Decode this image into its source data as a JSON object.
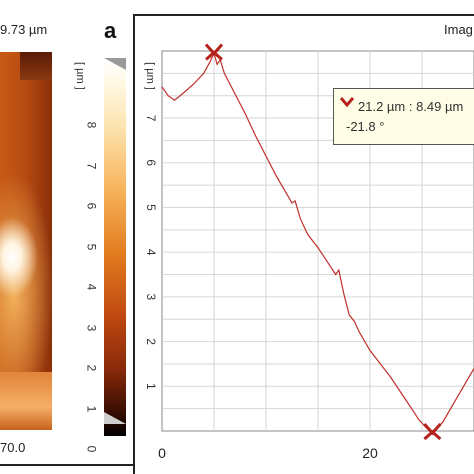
{
  "left_panel": {
    "header_value": "9.73 µm",
    "bottom_value": "70.0"
  },
  "colorbar": {
    "unit": "[ µm ]",
    "ticks": [
      "8",
      "7",
      "6",
      "5",
      "4",
      "3",
      "2",
      "1",
      "0"
    ]
  },
  "panel_label": "a",
  "image_tab": "Imag",
  "tooltip": {
    "line1": "21.2 µm : 8.49 µm",
    "line2": "-21.8 °"
  },
  "colors": {
    "line": "#c0302a",
    "marker": "#b5221c",
    "grid": "#d6d6d6",
    "tooltip_bg": "#fffde6"
  },
  "chart_data": {
    "type": "line",
    "ylabel": "[ µm ]",
    "xlim": [
      0,
      30
    ],
    "ylim": [
      0,
      8.5
    ],
    "x_ticks": [
      0,
      20
    ],
    "y_ticks": [
      1,
      2,
      3,
      4,
      5,
      6,
      7
    ],
    "grid": true,
    "series": [
      {
        "x": [
          0,
          0.6,
          1.2,
          2.0,
          3.0,
          4.0,
          4.6,
          5.0,
          5.3,
          5.6,
          6.0,
          7.0,
          8.0,
          9.0,
          10.0,
          11.0,
          12.0,
          12.5,
          12.8,
          13.3,
          14.0,
          15.0,
          16.0,
          16.7,
          17.0,
          17.5,
          18.0,
          18.5,
          19.0,
          20.0,
          21.0,
          22.0,
          23.0,
          24.0,
          24.7,
          25.5,
          26.0,
          26.5,
          27.0,
          28.0,
          29.0,
          30.0
        ],
        "y": [
          7.7,
          7.5,
          7.4,
          7.55,
          7.75,
          8.0,
          8.25,
          8.45,
          8.2,
          8.3,
          8.0,
          7.55,
          7.1,
          6.6,
          6.15,
          5.7,
          5.3,
          5.1,
          5.15,
          4.75,
          4.4,
          4.1,
          3.75,
          3.5,
          3.6,
          3.05,
          2.6,
          2.45,
          2.2,
          1.8,
          1.5,
          1.2,
          0.85,
          0.5,
          0.25,
          0.05,
          0.0,
          0.08,
          0.2,
          0.6,
          1.0,
          1.4
        ]
      }
    ],
    "markers": [
      {
        "x": 5.0,
        "y": 8.49
      },
      {
        "x": 26.0,
        "y": 0.0
      }
    ]
  }
}
